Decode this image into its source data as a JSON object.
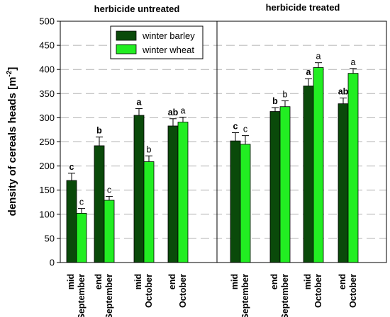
{
  "colors": {
    "barley": "#0a4a0a",
    "wheat": "#22ee22",
    "grid": "#b0b0b0",
    "axis": "#000000"
  },
  "chart_data": {
    "type": "bar",
    "ylabel": "density of cereals heads [m",
    "ylabel_sup": "-2",
    "ylabel_close": "]",
    "ylim": [
      0,
      500
    ],
    "yticks": [
      0,
      50,
      100,
      150,
      200,
      250,
      300,
      350,
      400,
      450,
      500
    ],
    "grid": true,
    "legend_position": "top-left of right area",
    "legend": [
      {
        "name": "winter barley",
        "color_key": "barley"
      },
      {
        "name": "winter wheat",
        "color_key": "wheat"
      }
    ],
    "panels": [
      {
        "title": "herbicide untreated",
        "categories": [
          {
            "line1": "mid",
            "line2": "September"
          },
          {
            "line1": "end",
            "line2": "September"
          },
          {
            "line1": "mid",
            "line2": "October"
          },
          {
            "line1": "end",
            "line2": "October"
          }
        ],
        "series": [
          {
            "name": "winter barley",
            "values": [
              170,
              242,
              305,
              283
            ],
            "errors": [
              15,
              18,
              14,
              15
            ],
            "labels": [
              "c",
              "b",
              "a",
              "ab"
            ]
          },
          {
            "name": "winter wheat",
            "values": [
              102,
              129,
              209,
              291
            ],
            "errors": [
              10,
              8,
              12,
              10
            ],
            "labels": [
              "c",
              "c",
              "b",
              "a"
            ]
          }
        ]
      },
      {
        "title": "herbicide treated",
        "categories": [
          {
            "line1": "mid",
            "line2": "September"
          },
          {
            "line1": "end",
            "line2": "September"
          },
          {
            "line1": "mid",
            "line2": "October"
          },
          {
            "line1": "end",
            "line2": "October"
          }
        ],
        "series": [
          {
            "name": "winter barley",
            "values": [
              252,
              313,
              366,
              329
            ],
            "errors": [
              17,
              8,
              15,
              12
            ],
            "labels": [
              "c",
              "b",
              "a",
              "ab"
            ]
          },
          {
            "name": "winter wheat",
            "values": [
              245,
              323,
              404,
              392
            ],
            "errors": [
              18,
              12,
              10,
              10
            ],
            "labels": [
              "c",
              "b",
              "a",
              "a"
            ]
          }
        ]
      }
    ]
  }
}
